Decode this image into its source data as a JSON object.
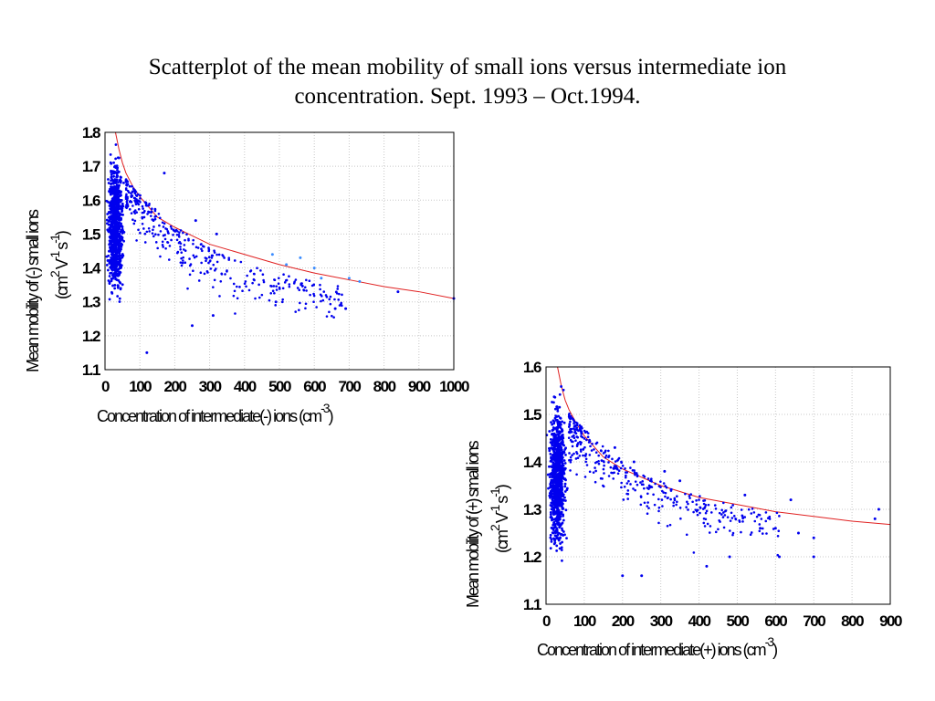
{
  "title": {
    "line1": "Scatterplot of the mean mobility of small ions versus intermediate ion",
    "line2": "concentration. Sept. 1993 – Oct.1994."
  },
  "colors": {
    "points": "#0000ee",
    "points_light": "#3a8cff",
    "fit": "#e02020",
    "grid": "#c8c8c8",
    "frame": "#000000"
  },
  "chart_data": [
    {
      "type": "scatter",
      "xlabel": "Concentration of intermediate(-) ions (cm",
      "xlabel_sup": "-3",
      "xlabel_close": ")",
      "ylabel": "Mean mobility of (-) small ions",
      "ylabel2": "(cm",
      "ylabel2_sup1": "2",
      "ylabel2_mid": " V",
      "ylabel2_sup2": "-1",
      "ylabel2_s": " s",
      "ylabel2_sup3": "-1",
      "ylabel2_close": ")",
      "xlim": [
        0,
        1000
      ],
      "ylim": [
        1.1,
        1.8
      ],
      "xticks": [
        "0",
        "100",
        "200",
        "300",
        "400",
        "500",
        "600",
        "700",
        "800",
        "900",
        "1000"
      ],
      "yticks": [
        "1.1",
        "1.2",
        "1.3",
        "1.4",
        "1.5",
        "1.6",
        "1.7",
        "1.8"
      ],
      "grid": true,
      "fit_curve": {
        "x": [
          30,
          40,
          50,
          60,
          80,
          100,
          150,
          200,
          300,
          400,
          500,
          600,
          700,
          800,
          900,
          1000
        ],
        "y": [
          1.8,
          1.75,
          1.71,
          1.68,
          1.64,
          1.61,
          1.55,
          1.52,
          1.47,
          1.44,
          1.41,
          1.385,
          1.365,
          1.345,
          1.33,
          1.31
        ]
      },
      "cluster": {
        "x_range": [
          0,
          60
        ],
        "y_range": [
          1.27,
          1.77
        ]
      },
      "sample_points": [
        {
          "x": 170,
          "y": 1.68
        },
        {
          "x": 260,
          "y": 1.54
        },
        {
          "x": 320,
          "y": 1.5
        },
        {
          "x": 480,
          "y": 1.44
        },
        {
          "x": 520,
          "y": 1.41
        },
        {
          "x": 560,
          "y": 1.43
        },
        {
          "x": 600,
          "y": 1.4
        },
        {
          "x": 620,
          "y": 1.37
        },
        {
          "x": 660,
          "y": 1.28
        },
        {
          "x": 690,
          "y": 1.28
        },
        {
          "x": 700,
          "y": 1.37
        },
        {
          "x": 730,
          "y": 1.36
        },
        {
          "x": 840,
          "y": 1.33
        },
        {
          "x": 1000,
          "y": 1.31
        },
        {
          "x": 490,
          "y": 1.3
        },
        {
          "x": 250,
          "y": 1.23
        },
        {
          "x": 120,
          "y": 1.15
        },
        {
          "x": 310,
          "y": 1.26
        }
      ]
    },
    {
      "type": "scatter",
      "xlabel": "Concentration of intermediate(+) ions (cm",
      "xlabel_sup": "-3",
      "xlabel_close": ")",
      "ylabel": "Mean mobility of (+) small ions",
      "ylabel2": "(cm",
      "ylabel2_sup1": "2",
      "ylabel2_mid": " V",
      "ylabel2_sup2": "-1",
      "ylabel2_s": " s",
      "ylabel2_sup3": "-1",
      "ylabel2_close": ")",
      "xlim": [
        0,
        900
      ],
      "ylim": [
        1.1,
        1.6
      ],
      "xticks": [
        "0",
        "100",
        "200",
        "300",
        "400",
        "500",
        "600",
        "700",
        "800",
        "900"
      ],
      "yticks": [
        "1.1",
        "1.2",
        "1.3",
        "1.4",
        "1.5",
        "1.6"
      ],
      "grid": true,
      "fit_curve": {
        "x": [
          30,
          40,
          50,
          60,
          80,
          100,
          150,
          200,
          300,
          400,
          500,
          600,
          700,
          800,
          900
        ],
        "y": [
          1.6,
          1.56,
          1.53,
          1.51,
          1.48,
          1.455,
          1.41,
          1.385,
          1.35,
          1.325,
          1.31,
          1.295,
          1.285,
          1.275,
          1.268
        ]
      },
      "cluster": {
        "x_range": [
          0,
          60
        ],
        "y_range": [
          1.17,
          1.56
        ]
      },
      "sample_points": [
        {
          "x": 180,
          "y": 1.43
        },
        {
          "x": 230,
          "y": 1.4
        },
        {
          "x": 310,
          "y": 1.38
        },
        {
          "x": 350,
          "y": 1.36
        },
        {
          "x": 520,
          "y": 1.33
        },
        {
          "x": 640,
          "y": 1.32
        },
        {
          "x": 860,
          "y": 1.28
        },
        {
          "x": 870,
          "y": 1.3
        },
        {
          "x": 610,
          "y": 1.2
        },
        {
          "x": 560,
          "y": 1.26
        },
        {
          "x": 700,
          "y": 1.24
        },
        {
          "x": 700,
          "y": 1.2
        },
        {
          "x": 660,
          "y": 1.25
        },
        {
          "x": 200,
          "y": 1.16
        },
        {
          "x": 250,
          "y": 1.16
        },
        {
          "x": 420,
          "y": 1.18
        },
        {
          "x": 480,
          "y": 1.2
        },
        {
          "x": 600,
          "y": 1.26
        }
      ]
    }
  ]
}
